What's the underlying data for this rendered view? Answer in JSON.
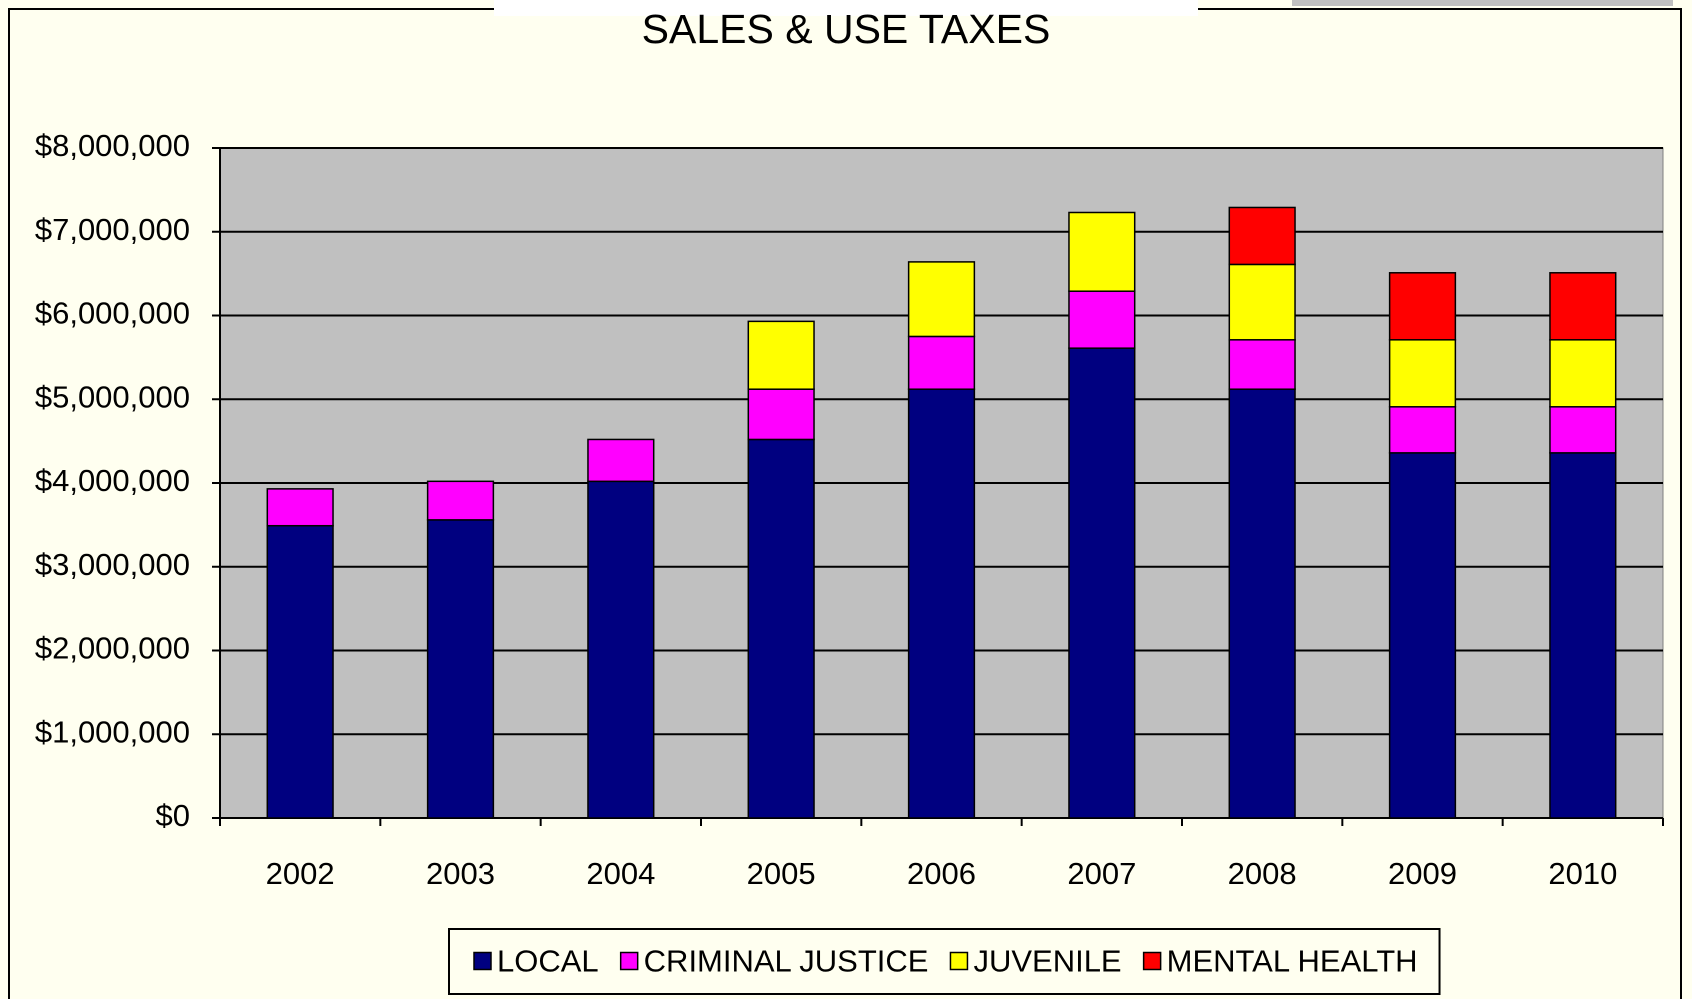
{
  "chart_data": {
    "type": "stacked_bar",
    "title": "SALES & USE TAXES",
    "categories": [
      "2002",
      "2003",
      "2004",
      "2005",
      "2006",
      "2007",
      "2008",
      "2009",
      "2010"
    ],
    "series": [
      {
        "name": "LOCAL",
        "color": "#000080",
        "values": [
          3490000,
          3560000,
          4020000,
          4520000,
          5120000,
          5610000,
          5120000,
          4360000,
          4360000
        ]
      },
      {
        "name": "CRIMINAL JUSTICE",
        "color": "#ff00ff",
        "values": [
          440000,
          460000,
          500000,
          600000,
          630000,
          680000,
          590000,
          550000,
          550000
        ]
      },
      {
        "name": "JUVENILE",
        "color": "#ffff00",
        "values": [
          null,
          null,
          null,
          810000,
          890000,
          940000,
          900000,
          800000,
          800000
        ]
      },
      {
        "name": "MENTAL HEALTH",
        "color": "#ff0000",
        "values": [
          null,
          null,
          null,
          null,
          null,
          null,
          680000,
          800000,
          800000
        ]
      }
    ],
    "ylim": [
      0,
      8000000
    ],
    "yticks": [
      {
        "value": 0,
        "label": "$0"
      },
      {
        "value": 1000000,
        "label": "$1,000,000"
      },
      {
        "value": 2000000,
        "label": "$2,000,000"
      },
      {
        "value": 3000000,
        "label": "$3,000,000"
      },
      {
        "value": 4000000,
        "label": "$4,000,000"
      },
      {
        "value": 5000000,
        "label": "$5,000,000"
      },
      {
        "value": 6000000,
        "label": "$6,000,000"
      },
      {
        "value": 7000000,
        "label": "$7,000,000"
      },
      {
        "value": 8000000,
        "label": "$8,000,000"
      }
    ],
    "grid": true,
    "legend": "bottom",
    "plot_background": "#c0c0c0"
  }
}
